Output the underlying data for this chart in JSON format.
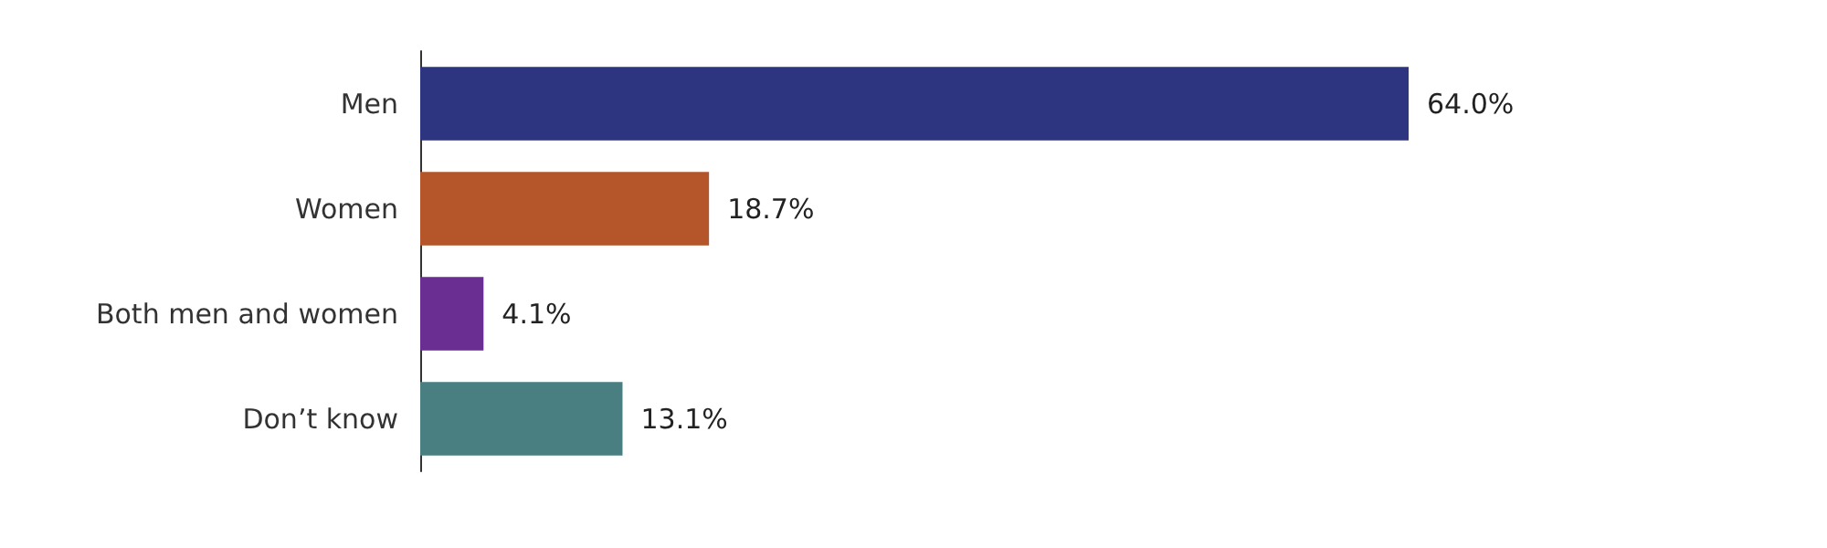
{
  "chart_data": {
    "type": "bar",
    "orientation": "horizontal",
    "categories": [
      "Men",
      "Women",
      "Both men and women",
      "Don’t know"
    ],
    "values": [
      64.0,
      18.7,
      4.1,
      13.1
    ],
    "colors": [
      "#2e3580",
      "#b5562a",
      "#6a2d91",
      "#4a7f82"
    ],
    "value_labels": [
      "64.0%",
      "18.7%",
      "4.1%",
      "13.1%"
    ],
    "grid": false
  }
}
